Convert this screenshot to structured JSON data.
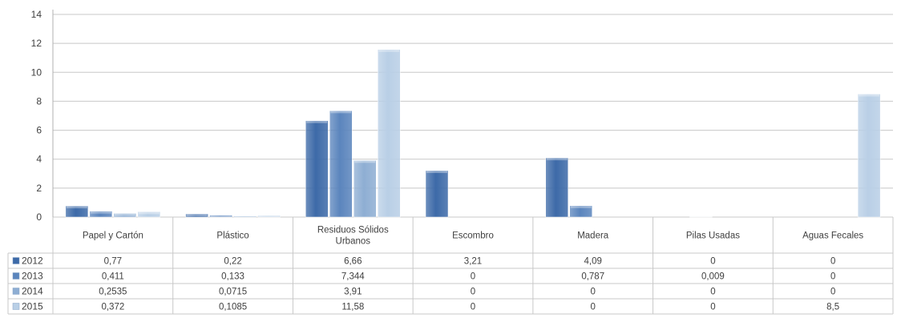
{
  "chart_data": {
    "type": "bar",
    "ylim": [
      0,
      14
    ],
    "yticks": [
      0,
      2,
      4,
      6,
      8,
      10,
      12,
      14
    ],
    "grid": true,
    "legend": "table-left",
    "categories": [
      [
        "Papel y Cartón"
      ],
      [
        "Plástico"
      ],
      [
        "Residuos Sólidos",
        "Urbanos"
      ],
      [
        "Escombro"
      ],
      [
        "Madera"
      ],
      [
        "Pilas Usadas"
      ],
      [
        "Aguas Fecales"
      ]
    ],
    "series": [
      {
        "name": "2012",
        "color": "#3d6aa8",
        "values": [
          0.77,
          0.22,
          6.66,
          3.21,
          4.09,
          0,
          0
        ],
        "labels": [
          "0,77",
          "0,22",
          "6,66",
          "3,21",
          "4,09",
          "0",
          "0"
        ]
      },
      {
        "name": "2013",
        "color": "#5b85bd",
        "values": [
          0.411,
          0.133,
          7.344,
          0,
          0.787,
          0.009,
          0
        ],
        "labels": [
          "0,411",
          "0,133",
          "7,344",
          "0",
          "0,787",
          "0,009",
          "0"
        ]
      },
      {
        "name": "2014",
        "color": "#8eaed3",
        "values": [
          0.2535,
          0.0715,
          3.91,
          0,
          0,
          0,
          0
        ],
        "labels": [
          "0,2535",
          "0,0715",
          "3,91",
          "0",
          "0",
          "0",
          "0"
        ]
      },
      {
        "name": "2015",
        "color": "#b9cfe6",
        "values": [
          0.372,
          0.1085,
          11.58,
          0,
          0,
          0,
          8.5
        ],
        "labels": [
          "0,372",
          "0,1085",
          "11,58",
          "0",
          "0",
          "0",
          "8,5"
        ]
      }
    ]
  }
}
